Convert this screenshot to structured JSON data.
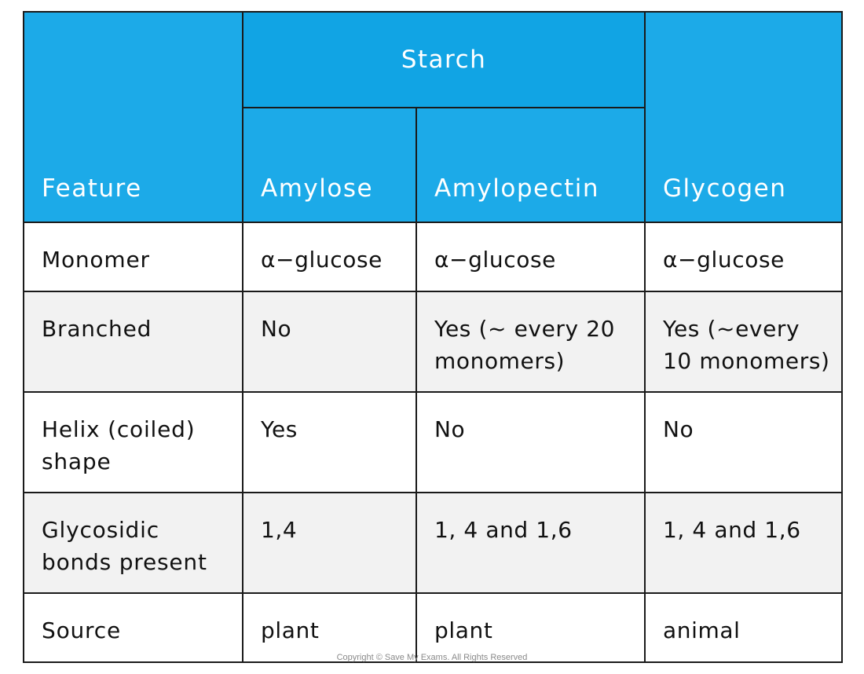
{
  "table": {
    "headers": {
      "group": "Starch",
      "feature": "Feature",
      "amylose": "Amylose",
      "amylopectin": "Amylopectin",
      "glycogen": "Glycogen"
    },
    "rows": [
      {
        "label": "Monomer",
        "amylose": "α−glucose",
        "amylopectin": "α−glucose",
        "glycogen": "α−glucose"
      },
      {
        "label": "Branched",
        "amylose": "No",
        "amylopectin": "Yes (~ every 20 monomers)",
        "glycogen": "Yes (~every 10 monomers)"
      },
      {
        "label": "Helix (coiled) shape",
        "amylose": "Yes",
        "amylopectin": "No",
        "glycogen": "No"
      },
      {
        "label": "Glycosidic bonds present",
        "amylose": "1,4",
        "amylopectin": "1, 4 and 1,6",
        "glycogen": "1, 4 and 1,6"
      },
      {
        "label": "Source",
        "amylose": "plant",
        "amylopectin": "plant",
        "glycogen": "animal"
      }
    ]
  },
  "colors": {
    "header_blue": "#1caae8",
    "header_blue_top": "#11a4e4",
    "row_alt": "#f2f2f2",
    "border": "#1a1a1a"
  },
  "watermark_icon": "save-my-exams-logo-icon",
  "footer": {
    "copyright": "Copyright © Save My Exams. All Rights Reserved"
  }
}
